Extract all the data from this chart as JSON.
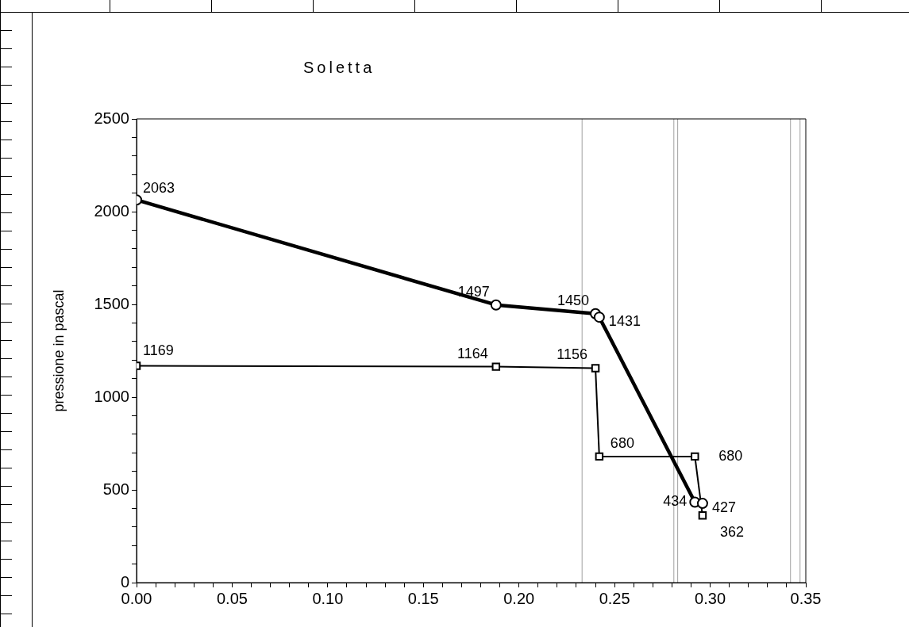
{
  "chart_data": {
    "type": "line",
    "title": "Soletta",
    "ylabel": "pressione in pascal",
    "xlim": [
      0,
      0.35
    ],
    "xticks": [
      {
        "value": 0,
        "label": "0.00"
      },
      {
        "value": 0.01,
        "label": null
      },
      {
        "value": 0.02,
        "label": null
      },
      {
        "value": 0.03,
        "label": null
      },
      {
        "value": 0.04,
        "label": null
      },
      {
        "value": 0.05,
        "label": "0.05"
      },
      {
        "value": 0.06,
        "label": null
      },
      {
        "value": 0.07,
        "label": null
      },
      {
        "value": 0.08,
        "label": null
      },
      {
        "value": 0.09,
        "label": null
      },
      {
        "value": 0.1,
        "label": "0.10"
      },
      {
        "value": 0.11,
        "label": null
      },
      {
        "value": 0.12,
        "label": null
      },
      {
        "value": 0.13,
        "label": null
      },
      {
        "value": 0.14,
        "label": null
      },
      {
        "value": 0.15,
        "label": "0.15"
      },
      {
        "value": 0.16,
        "label": null
      },
      {
        "value": 0.17,
        "label": null
      },
      {
        "value": 0.18,
        "label": null
      },
      {
        "value": 0.19,
        "label": null
      },
      {
        "value": 0.2,
        "label": "0.20"
      },
      {
        "value": 0.21,
        "label": null
      },
      {
        "value": 0.22,
        "label": null
      },
      {
        "value": 0.23,
        "label": null
      },
      {
        "value": 0.24,
        "label": null
      },
      {
        "value": 0.25,
        "label": "0.25"
      },
      {
        "value": 0.26,
        "label": null
      },
      {
        "value": 0.27,
        "label": null
      },
      {
        "value": 0.28,
        "label": null
      },
      {
        "value": 0.29,
        "label": null
      },
      {
        "value": 0.3,
        "label": "0.30"
      },
      {
        "value": 0.31,
        "label": null
      },
      {
        "value": 0.32,
        "label": null
      },
      {
        "value": 0.33,
        "label": null
      },
      {
        "value": 0.34,
        "label": null
      },
      {
        "value": 0.35,
        "label": "0.35"
      }
    ],
    "ylim": [
      0,
      2500
    ],
    "yticks": [
      0,
      {
        "value": 100,
        "label": null
      },
      {
        "value": 200,
        "label": null
      },
      {
        "value": 300,
        "label": null
      },
      {
        "value": 400,
        "label": null
      },
      500,
      {
        "value": 600,
        "label": null
      },
      {
        "value": 700,
        "label": null
      },
      {
        "value": 800,
        "label": null
      },
      {
        "value": 900,
        "label": null
      },
      1000,
      {
        "value": 1100,
        "label": null
      },
      {
        "value": 1200,
        "label": null
      },
      {
        "value": 1300,
        "label": null
      },
      {
        "value": 1400,
        "label": null
      },
      1500,
      {
        "value": 1600,
        "label": null
      },
      {
        "value": 1700,
        "label": null
      },
      {
        "value": 1800,
        "label": null
      },
      {
        "value": 1900,
        "label": null
      },
      2000,
      {
        "value": 2100,
        "label": null
      },
      {
        "value": 2200,
        "label": null
      },
      {
        "value": 2300,
        "label": null
      },
      {
        "value": 2400,
        "label": null
      },
      2500
    ],
    "grid": false,
    "legend": false,
    "data_labels": true,
    "line_style": "solid",
    "series": [
      {
        "color": "#000000",
        "marker": "circle",
        "x": [
          0,
          0.188,
          0.24,
          0.242,
          0.292,
          0.296
        ],
        "values": [
          2063,
          1497,
          1450,
          1431,
          434,
          427
        ]
      },
      {
        "color": "#000000",
        "marker": "square",
        "x": [
          0,
          0.188,
          0.24,
          0.242,
          0.292,
          0.296
        ],
        "values": [
          1169,
          1164,
          1156,
          680,
          680,
          362
        ]
      }
    ],
    "ref_lines": [
      {
        "axis": "x",
        "value": 0.233,
        "color": "#a0a0a0"
      },
      {
        "axis": "x",
        "value": 0.281,
        "color": "#a0a0a0"
      },
      {
        "axis": "x",
        "value": 0.283,
        "color": "#a0a0a0"
      },
      {
        "axis": "x",
        "value": 0.342,
        "color": "#a0a0a0"
      },
      {
        "axis": "x",
        "value": 0.347,
        "color": "#a0a0a0"
      }
    ]
  }
}
